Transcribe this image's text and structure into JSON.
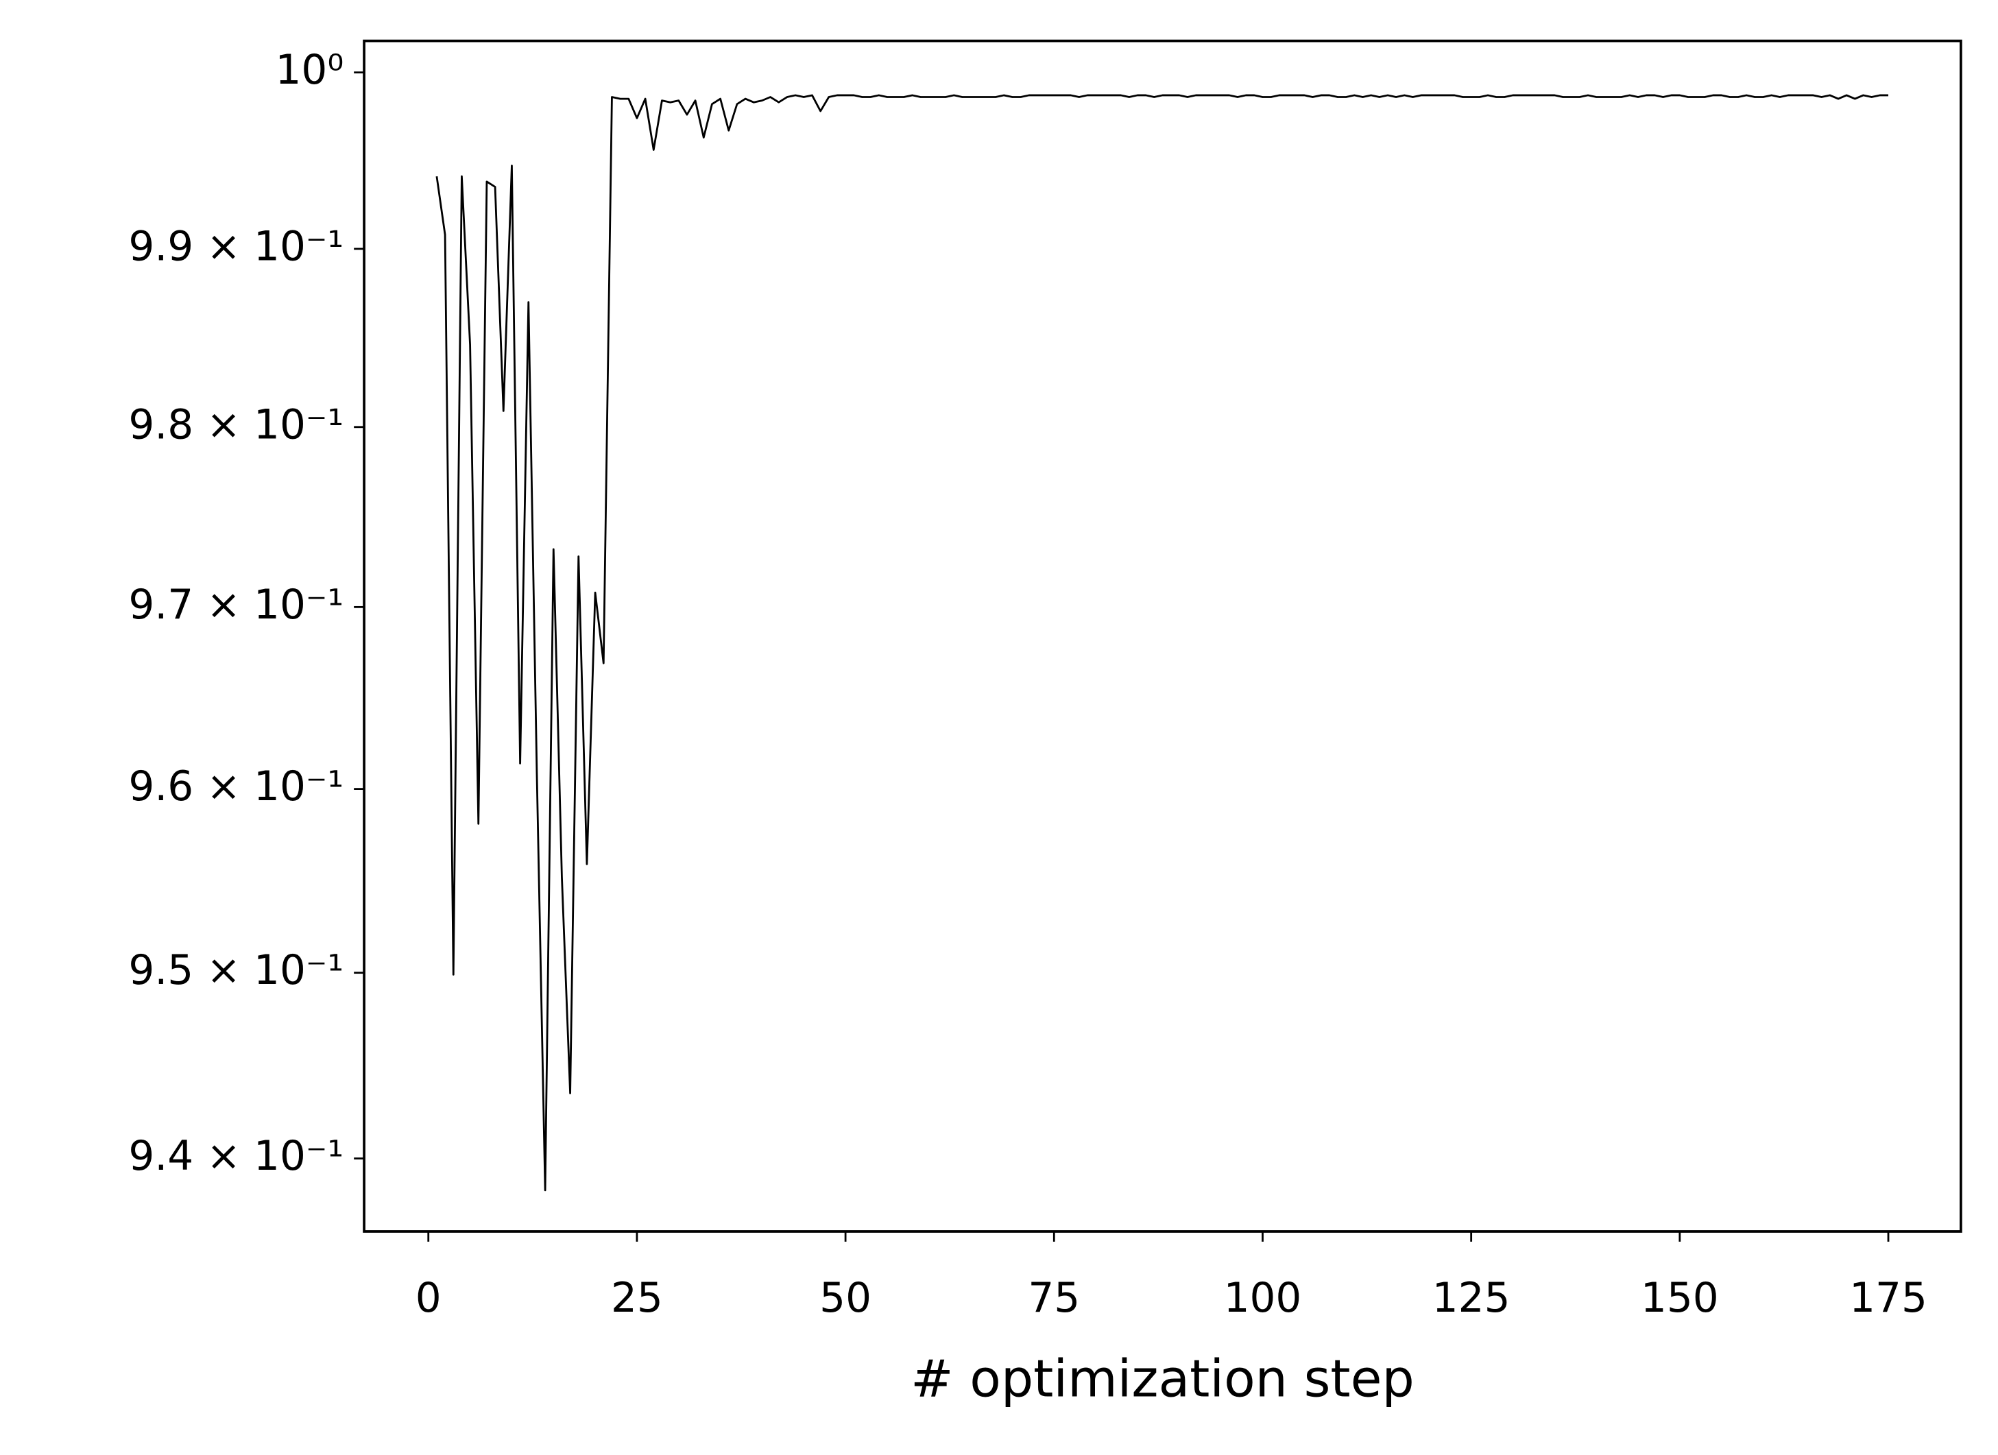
{
  "chart_data": {
    "type": "line",
    "x_label": "# optimization step",
    "color": "#000000",
    "log_y": true,
    "xlim": [
      -7.7,
      183.7
    ],
    "ylim": [
      0.9361,
      1.0018
    ],
    "xticks": [
      0,
      25,
      50,
      75,
      100,
      125,
      150,
      175
    ],
    "yticks": [
      {
        "value": 0.94,
        "label": "9.4 × 10⁻¹"
      },
      {
        "value": 0.95,
        "label": "9.5 × 10⁻¹"
      },
      {
        "value": 0.96,
        "label": "9.6 × 10⁻¹"
      },
      {
        "value": 0.97,
        "label": "9.7 × 10⁻¹"
      },
      {
        "value": 0.98,
        "label": "9.8 × 10⁻¹"
      },
      {
        "value": 0.99,
        "label": "9.9 × 10⁻¹"
      },
      {
        "value": 1,
        "label": "10⁰"
      }
    ],
    "x": [
      1,
      2,
      3,
      4,
      5,
      6,
      7,
      8,
      9,
      10,
      11,
      12,
      13,
      14,
      15,
      16,
      17,
      18,
      19,
      20,
      21,
      22,
      23,
      24,
      25,
      26,
      27,
      28,
      29,
      30,
      31,
      32,
      33,
      34,
      35,
      36,
      37,
      38,
      39,
      40,
      41,
      42,
      43,
      44,
      45,
      46,
      47,
      48,
      49,
      50,
      51,
      52,
      53,
      54,
      55,
      56,
      57,
      58,
      59,
      60,
      61,
      62,
      63,
      64,
      65,
      66,
      67,
      68,
      69,
      70,
      71,
      72,
      73,
      74,
      75,
      76,
      77,
      78,
      79,
      80,
      81,
      82,
      83,
      84,
      85,
      86,
      87,
      88,
      89,
      90,
      91,
      92,
      93,
      94,
      95,
      96,
      97,
      98,
      99,
      100,
      101,
      102,
      103,
      104,
      105,
      106,
      107,
      108,
      109,
      110,
      111,
      112,
      113,
      114,
      115,
      116,
      117,
      118,
      119,
      120,
      121,
      122,
      123,
      124,
      125,
      126,
      127,
      128,
      129,
      130,
      131,
      132,
      133,
      134,
      135,
      136,
      137,
      138,
      139,
      140,
      141,
      142,
      143,
      144,
      145,
      146,
      147,
      148,
      149,
      150,
      151,
      152,
      153,
      154,
      155,
      156,
      157,
      158,
      159,
      160,
      161,
      162,
      163,
      164,
      165,
      166,
      167,
      168,
      169,
      170,
      171,
      172,
      173,
      174,
      175
    ],
    "values": [
      0.9941,
      0.9908,
      0.9499,
      0.9941,
      0.9846,
      0.9581,
      0.9938,
      0.9935,
      0.9809,
      0.9947,
      0.9614,
      0.987,
      0.9609,
      0.9383,
      0.9732,
      0.9552,
      0.9435,
      0.9728,
      0.9559,
      0.9708,
      0.9669,
      0.9986,
      0.9985,
      0.9985,
      0.9974,
      0.9985,
      0.9956,
      0.9984,
      0.9983,
      0.9984,
      0.9976,
      0.9984,
      0.9963,
      0.9982,
      0.9985,
      0.9967,
      0.9982,
      0.9985,
      0.9983,
      0.9984,
      0.9986,
      0.9983,
      0.9986,
      0.9987,
      0.9986,
      0.9987,
      0.9978,
      0.9986,
      0.9987,
      0.9987,
      0.9987,
      0.9986,
      0.9986,
      0.9987,
      0.9986,
      0.9986,
      0.9986,
      0.9987,
      0.9986,
      0.9986,
      0.9986,
      0.9986,
      0.9987,
      0.9986,
      0.9986,
      0.9986,
      0.9986,
      0.9986,
      0.9987,
      0.9986,
      0.9986,
      0.9987,
      0.9987,
      0.9987,
      0.9987,
      0.9987,
      0.9987,
      0.9986,
      0.9987,
      0.9987,
      0.9987,
      0.9987,
      0.9987,
      0.9986,
      0.9987,
      0.9987,
      0.9986,
      0.9987,
      0.9987,
      0.9987,
      0.9986,
      0.9987,
      0.9987,
      0.9987,
      0.9987,
      0.9987,
      0.9986,
      0.9987,
      0.9987,
      0.9986,
      0.9986,
      0.9987,
      0.9987,
      0.9987,
      0.9987,
      0.9986,
      0.9987,
      0.9987,
      0.9986,
      0.9986,
      0.9987,
      0.9986,
      0.9987,
      0.9986,
      0.9987,
      0.9986,
      0.9987,
      0.9986,
      0.9987,
      0.9987,
      0.9987,
      0.9987,
      0.9987,
      0.9986,
      0.9986,
      0.9986,
      0.9987,
      0.9986,
      0.9986,
      0.9987,
      0.9987,
      0.9987,
      0.9987,
      0.9987,
      0.9987,
      0.9986,
      0.9986,
      0.9986,
      0.9987,
      0.9986,
      0.9986,
      0.9986,
      0.9986,
      0.9987,
      0.9986,
      0.9987,
      0.9987,
      0.9986,
      0.9987,
      0.9987,
      0.9986,
      0.9986,
      0.9986,
      0.9987,
      0.9987,
      0.9986,
      0.9986,
      0.9987,
      0.9986,
      0.9986,
      0.9987,
      0.9986,
      0.9987,
      0.9987,
      0.9987,
      0.9987,
      0.9986,
      0.9987,
      0.9985,
      0.9987,
      0.9985,
      0.9987,
      0.9986,
      0.9987,
      0.9987
    ]
  }
}
